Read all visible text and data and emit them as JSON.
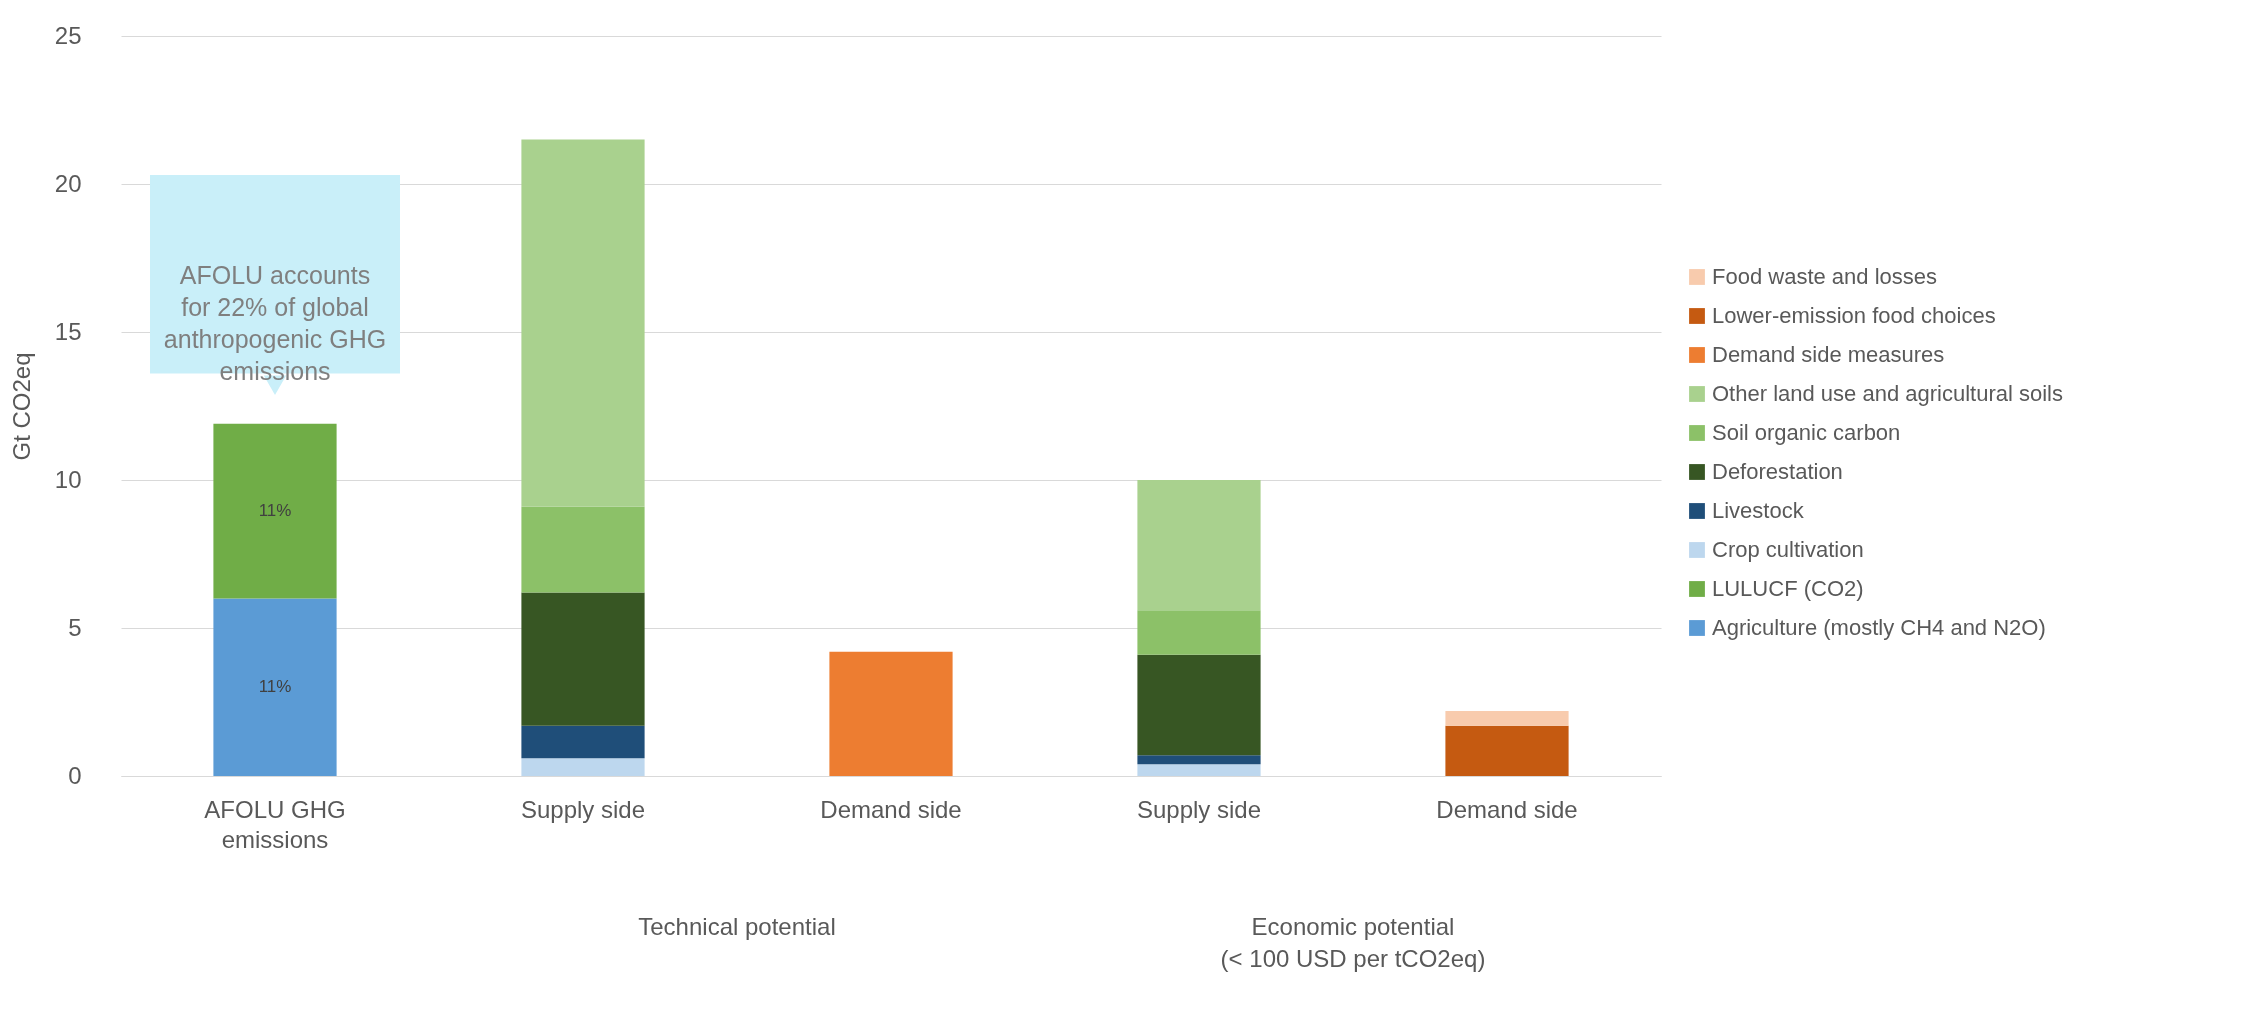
{
  "chart_data": {
    "type": "bar",
    "stacked": true,
    "ylabel": "Gt CO2eq",
    "categories": [
      "AFOLU GHG emissions",
      "Supply side",
      "Demand side",
      "Supply side",
      "Demand side"
    ],
    "series": [
      {
        "name": "Agriculture (mostly CH4 and N2O)",
        "color": "#5b9bd5",
        "values": [
          6.0,
          null,
          null,
          null,
          null
        ]
      },
      {
        "name": "LULUCF (CO2)",
        "color": "#70ad47",
        "values": [
          5.9,
          null,
          null,
          null,
          null
        ]
      },
      {
        "name": "Crop cultivation",
        "color": "#bdd7ee",
        "values": [
          null,
          0.6,
          null,
          0.4,
          null
        ]
      },
      {
        "name": "Livestock",
        "color": "#1f4e79",
        "values": [
          null,
          1.1,
          null,
          0.3,
          null
        ]
      },
      {
        "name": "Deforestation",
        "color": "#375623",
        "values": [
          null,
          4.5,
          null,
          3.4,
          null
        ]
      },
      {
        "name": "Soil organic carbon",
        "color": "#8cc168",
        "values": [
          null,
          2.9,
          null,
          1.5,
          null
        ]
      },
      {
        "name": "Other land use and agricultural soils",
        "color": "#a9d18e",
        "values": [
          null,
          12.4,
          null,
          4.4,
          null
        ]
      },
      {
        "name": "Demand side measures",
        "color": "#ed7d31",
        "values": [
          null,
          null,
          4.2,
          null,
          null
        ]
      },
      {
        "name": "Lower-emission food choices",
        "color": "#c55a11",
        "values": [
          null,
          null,
          null,
          null,
          1.7
        ]
      },
      {
        "name": "Food waste and losses",
        "color": "#f8cbad",
        "values": [
          null,
          null,
          null,
          null,
          0.5
        ]
      }
    ],
    "ylim": [
      0,
      25
    ],
    "yticks": [
      0,
      5,
      10,
      15,
      20,
      25
    ],
    "grid": "y",
    "legend": "right",
    "annotations": [
      "AFOLU accounts for 22% of global anthropogenic GHG emissions",
      "Technical potential",
      "Economic potential (< 100 USD per tCO2eq)",
      "11%",
      "11%"
    ]
  }
}
